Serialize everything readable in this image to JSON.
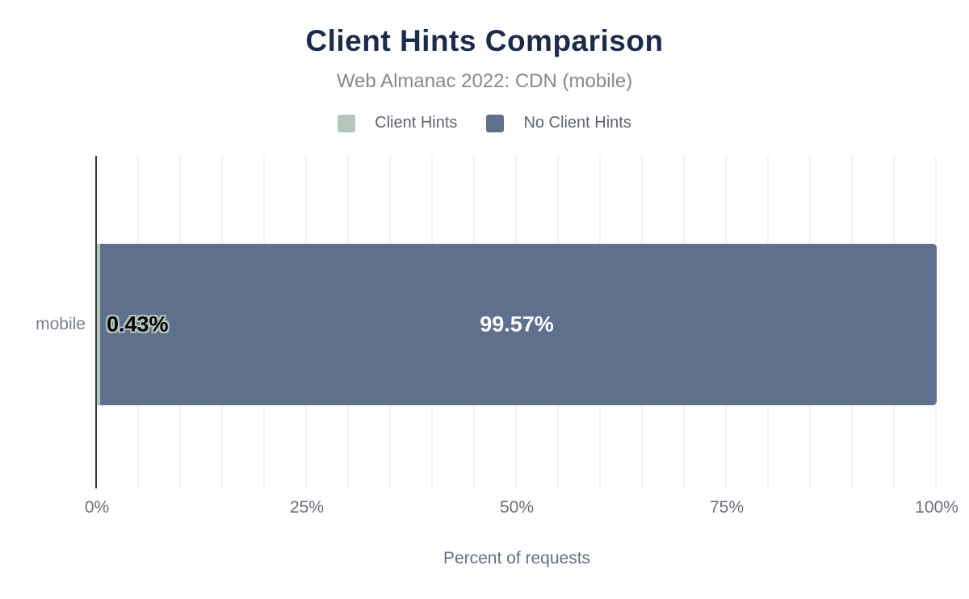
{
  "header": {
    "title": "Client Hints Comparison",
    "subtitle": "Web Almanac 2022: CDN (mobile)"
  },
  "legend": {
    "items": [
      {
        "label": "Client Hints",
        "color": "#b3c7bc"
      },
      {
        "label": "No Client Hints",
        "color": "#5f708d"
      }
    ]
  },
  "plot": {
    "category_label": "mobile"
  },
  "colors": {
    "title": "#1b2b4e",
    "subtitle": "#85898e",
    "client_hints": "#b3c7bc",
    "no_client_hints": "#5f708d",
    "axis_line": "#37393c",
    "gridline": "#f3f3f3",
    "bar_label_client_hints_text": "#000000",
    "bar_label_no_client_hints_text": "#ffffff"
  },
  "chart_data": {
    "type": "bar",
    "orientation": "horizontal",
    "stacked": true,
    "title": "Client Hints Comparison",
    "subtitle": "Web Almanac 2022: CDN (mobile)",
    "categories": [
      "mobile"
    ],
    "series": [
      {
        "name": "Client Hints",
        "values": [
          0.43
        ],
        "color": "#b3c7bc"
      },
      {
        "name": "No Client Hints",
        "values": [
          99.57
        ],
        "color": "#5f708d"
      }
    ],
    "data_labels": [
      "0.43%",
      "99.57%"
    ],
    "xlabel": "Percent of requests",
    "ylabel": "",
    "xlim": [
      0,
      100
    ],
    "x_ticks": [
      "0%",
      "25%",
      "50%",
      "75%",
      "100%"
    ],
    "gridlines": "vertical every 5%",
    "legend_position": "top"
  }
}
